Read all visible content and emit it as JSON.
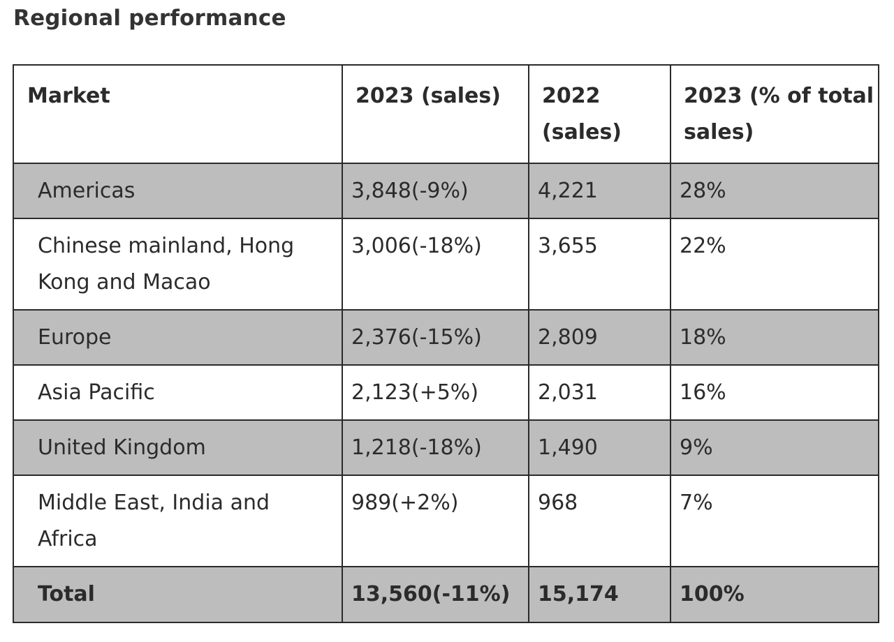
{
  "title": "Regional performance",
  "table": {
    "headers": [
      "Market",
      "2023 (sales)",
      "2022 (sales)",
      "2023 (% of total sales)"
    ],
    "rows": [
      [
        "Americas",
        "3,848(-9%)",
        "4,221",
        "28%"
      ],
      [
        "Chinese mainland, Hong Kong and Macao",
        "3,006(-18%)",
        "3,655",
        "22%"
      ],
      [
        "Europe",
        "2,376(-15%)",
        "2,809",
        "18%"
      ],
      [
        "Asia Pacific",
        "2,123(+5%)",
        "2,031",
        "16%"
      ],
      [
        "United Kingdom",
        "1,218(-18%)",
        "1,490",
        "9%"
      ],
      [
        "Middle East, India and Africa",
        "989(+2%)",
        "968",
        "7%"
      ]
    ],
    "total": [
      "Total",
      "13,560(-11%)",
      "15,174",
      "100%"
    ]
  },
  "colors": {
    "shaded_row": "#bdbdbd",
    "border": "#2a2a2a",
    "text": "#2b2b2b"
  }
}
